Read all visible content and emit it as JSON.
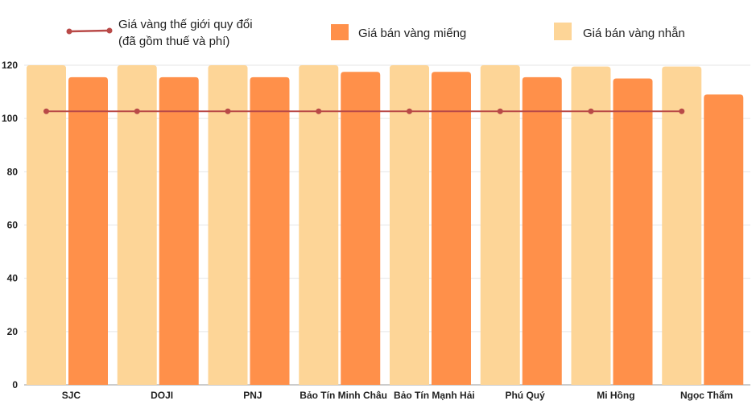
{
  "chart_data": {
    "type": "bar",
    "title": "",
    "xlabel": "",
    "ylabel": "",
    "ylim": [
      0,
      120
    ],
    "yticks": [
      0,
      20,
      40,
      60,
      80,
      100,
      120
    ],
    "grid": true,
    "legend_position": "top",
    "categories": [
      "SJC",
      "DOJI",
      "PNJ",
      "Bảo Tín Minh Châu",
      "Bảo Tín Mạnh Hải",
      "Phú Quý",
      "Mi Hồng",
      "Ngọc Thẩm"
    ],
    "series": [
      {
        "name": "Giá bán vàng nhẫn",
        "kind": "bar",
        "color": "#FDD597",
        "values": [
          120,
          120,
          120,
          120,
          120,
          120,
          119.5,
          119.5
        ]
      },
      {
        "name": "Giá bán vàng miếng",
        "kind": "bar",
        "color": "#FF904A",
        "values": [
          115.5,
          115.5,
          115.5,
          117.5,
          117.5,
          115.5,
          115,
          109
        ]
      },
      {
        "name": "Giá vàng thế giới quy đổi",
        "name_line2": "(đã gồm thuế và phí)",
        "kind": "line",
        "color": "#B94A48",
        "values": [
          102.7,
          102.7,
          102.7,
          102.7,
          102.7,
          102.7,
          102.7,
          102.7
        ]
      }
    ]
  }
}
